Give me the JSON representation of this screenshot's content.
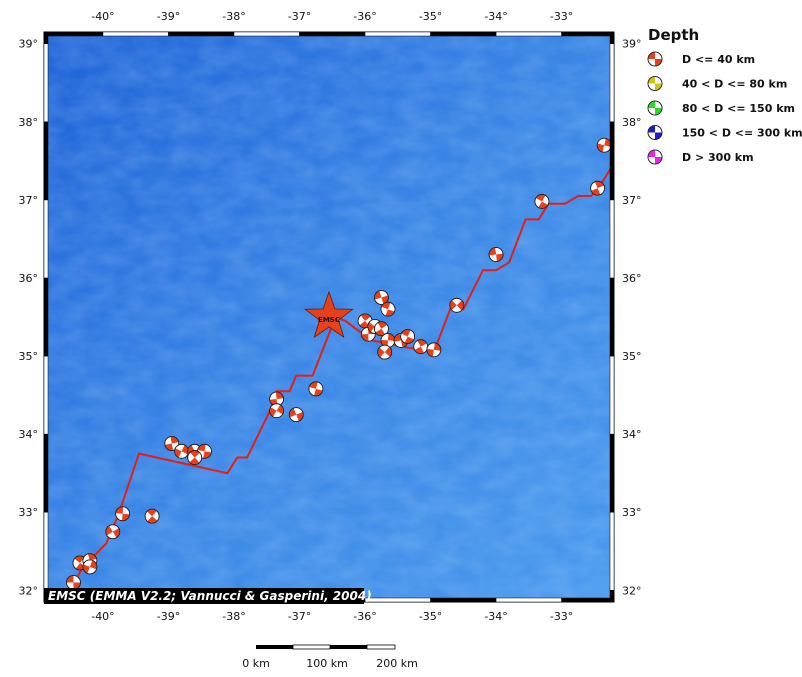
{
  "map": {
    "lon_range": [
      -40.9,
      -32.2
    ],
    "lat_range": [
      31.85,
      39.15
    ],
    "lon_ticks": [
      "-40°",
      "-39°",
      "-38°",
      "-37°",
      "-36°",
      "-35°",
      "-34°",
      "-33°"
    ],
    "lon_values": [
      -40,
      -39,
      -38,
      -37,
      -36,
      -35,
      -34,
      -33
    ],
    "lat_ticks": [
      "32°",
      "33°",
      "34°",
      "35°",
      "36°",
      "37°",
      "38°",
      "39°"
    ],
    "lat_values": [
      32,
      33,
      34,
      35,
      36,
      37,
      38,
      39
    ],
    "ocean_color": "#3a86e6",
    "ridge_color": "#e0201a",
    "credit": "EMSC (EMMA V2.2; Vannucci & Gasperini, 2004)"
  },
  "epicenter": {
    "label": "EMSC",
    "lon": -36.55,
    "lat": 35.5,
    "color": "#e8401c"
  },
  "plate_boundary": [
    [
      -40.55,
      31.95
    ],
    [
      -40.3,
      32.3
    ],
    [
      -39.95,
      32.6
    ],
    [
      -39.75,
      33.0
    ],
    [
      -39.45,
      33.75
    ],
    [
      -38.1,
      33.5
    ],
    [
      -37.95,
      33.7
    ],
    [
      -37.8,
      33.7
    ],
    [
      -37.45,
      34.3
    ],
    [
      -37.35,
      34.55
    ],
    [
      -37.15,
      34.55
    ],
    [
      -37.05,
      34.75
    ],
    [
      -36.8,
      34.75
    ],
    [
      -36.45,
      35.5
    ],
    [
      -36.3,
      35.45
    ],
    [
      -35.9,
      35.2
    ],
    [
      -35.3,
      35.1
    ],
    [
      -34.95,
      35.05
    ],
    [
      -34.7,
      35.6
    ],
    [
      -34.5,
      35.6
    ],
    [
      -34.2,
      36.1
    ],
    [
      -34.0,
      36.1
    ],
    [
      -33.8,
      36.2
    ],
    [
      -33.55,
      36.75
    ],
    [
      -33.35,
      36.75
    ],
    [
      -33.2,
      36.95
    ],
    [
      -32.95,
      36.95
    ],
    [
      -32.75,
      37.05
    ],
    [
      -32.55,
      37.05
    ],
    [
      -32.4,
      37.2
    ],
    [
      -32.25,
      37.4
    ],
    [
      -32.2,
      37.4
    ]
  ],
  "focal_mechanisms": [
    {
      "lon": -40.45,
      "lat": 32.1
    },
    {
      "lon": -40.35,
      "lat": 32.35
    },
    {
      "lon": -40.2,
      "lat": 32.38
    },
    {
      "lon": -40.2,
      "lat": 32.3
    },
    {
      "lon": -39.85,
      "lat": 32.75
    },
    {
      "lon": -39.7,
      "lat": 32.98
    },
    {
      "lon": -39.25,
      "lat": 32.95
    },
    {
      "lon": -38.95,
      "lat": 33.88
    },
    {
      "lon": -38.8,
      "lat": 33.78
    },
    {
      "lon": -38.6,
      "lat": 33.78
    },
    {
      "lon": -38.45,
      "lat": 33.78
    },
    {
      "lon": -38.6,
      "lat": 33.7
    },
    {
      "lon": -37.35,
      "lat": 34.45
    },
    {
      "lon": -37.35,
      "lat": 34.3
    },
    {
      "lon": -37.05,
      "lat": 34.25
    },
    {
      "lon": -36.75,
      "lat": 34.58
    },
    {
      "lon": -36.0,
      "lat": 35.45
    },
    {
      "lon": -35.95,
      "lat": 35.28
    },
    {
      "lon": -35.85,
      "lat": 35.38
    },
    {
      "lon": -35.75,
      "lat": 35.75
    },
    {
      "lon": -35.65,
      "lat": 35.6
    },
    {
      "lon": -35.75,
      "lat": 35.35
    },
    {
      "lon": -35.65,
      "lat": 35.2
    },
    {
      "lon": -35.7,
      "lat": 35.05
    },
    {
      "lon": -35.45,
      "lat": 35.2
    },
    {
      "lon": -35.35,
      "lat": 35.25
    },
    {
      "lon": -35.15,
      "lat": 35.12
    },
    {
      "lon": -34.95,
      "lat": 35.08
    },
    {
      "lon": -34.6,
      "lat": 35.65
    },
    {
      "lon": -34.0,
      "lat": 36.3
    },
    {
      "lon": -33.3,
      "lat": 36.98
    },
    {
      "lon": -32.45,
      "lat": 37.15
    },
    {
      "lon": -32.35,
      "lat": 37.7
    }
  ],
  "legend": {
    "title": "Depth",
    "items": [
      {
        "label": "D <= 40 km",
        "color": "#e8401c"
      },
      {
        "label": "40 < D <= 80 km",
        "color": "#c8c810"
      },
      {
        "label": "80 < D <= 150 km",
        "color": "#22dd22"
      },
      {
        "label": "150 < D <= 300 km",
        "color": "#1a1ad0"
      },
      {
        "label": "D > 300 km",
        "color": "#ee22ee"
      }
    ]
  },
  "scale_bar": {
    "labels": [
      "0 km",
      "100 km",
      "200 km"
    ]
  }
}
